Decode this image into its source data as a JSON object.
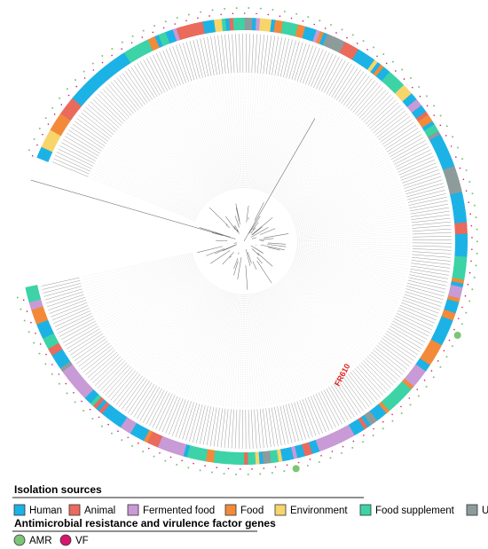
{
  "tree": {
    "highlight": "FR610"
  },
  "legend": {
    "sources_title": "Isolation sources",
    "sources": [
      {
        "name": "Human",
        "color": "#1cb2e6"
      },
      {
        "name": "Animal",
        "color": "#ea6a5c"
      },
      {
        "name": "Fermented food",
        "color": "#c89ad6"
      },
      {
        "name": "Food",
        "color": "#f28a3a"
      },
      {
        "name": "Environment",
        "color": "#f7d56a"
      },
      {
        "name": "Food supplement",
        "color": "#3dd3a6"
      },
      {
        "name": "Unknown",
        "color": "#8d9b9b"
      }
    ],
    "genes_title": "Antimicrobial resistance and virulence factor genes",
    "genes": [
      {
        "name": "AMR",
        "color": "#7cc576"
      },
      {
        "name": "VF",
        "color": "#d6156d"
      }
    ]
  }
}
